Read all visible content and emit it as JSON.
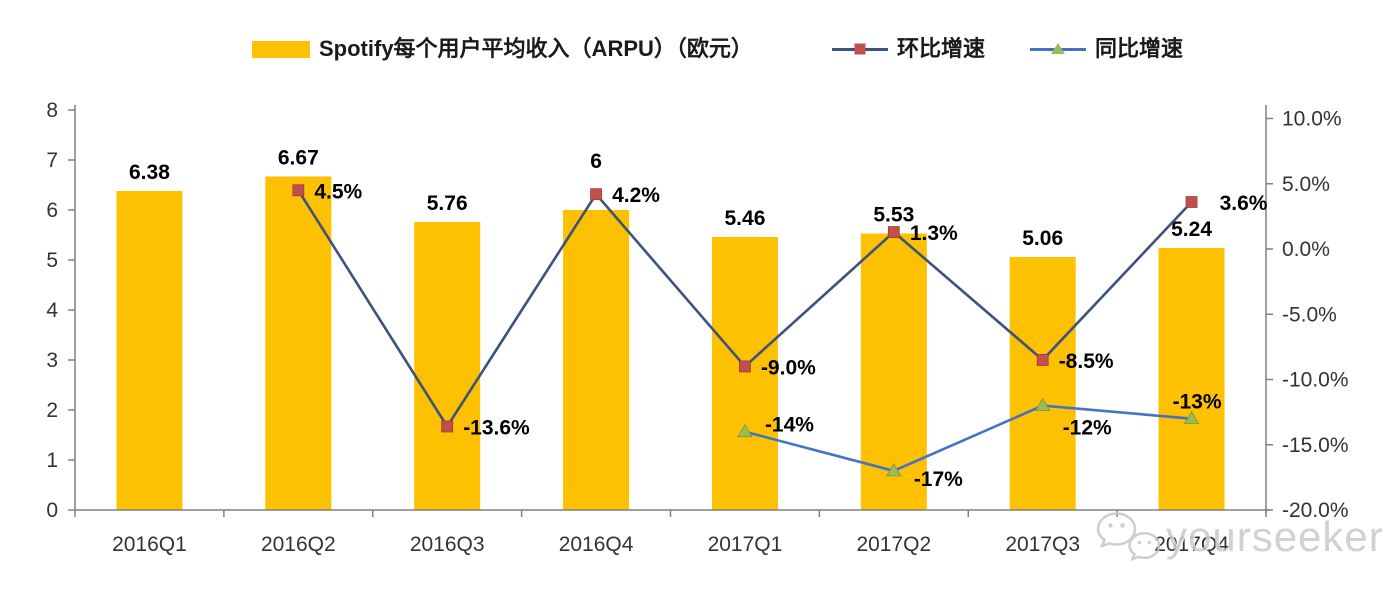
{
  "legend": {
    "arpu_label": "Spotify每个用户平均收入（ARPU）（欧元）",
    "qoq_label": "环比增速",
    "yoy_label": "同比增速"
  },
  "watermark": {
    "text": "yourseeker",
    "icon": "wechat-icon"
  },
  "colors": {
    "bar": "#FDC101",
    "qoq_line": "#3B537D",
    "qoq_marker": "#C0504D",
    "yoy_line": "#4472C4",
    "yoy_marker": "#9BBB59",
    "axis": "#808080",
    "tick_text": "#333333",
    "value_text": "#000000",
    "watermark": "#C9C9C9"
  },
  "chart_data": {
    "type": "bar+line dual-axis combo",
    "categories": [
      "2016Q1",
      "2016Q2",
      "2016Q3",
      "2016Q4",
      "2017Q1",
      "2017Q2",
      "2017Q3",
      "2017Q4"
    ],
    "series": [
      {
        "name": "Spotify每个用户平均收入（ARPU）（欧元）",
        "type": "bar",
        "axis": "left",
        "values": [
          6.38,
          6.67,
          5.76,
          6,
          5.46,
          5.53,
          5.06,
          5.24
        ],
        "labels": [
          "6.38",
          "6.67",
          "5.76",
          "6",
          "5.46",
          "5.53",
          "5.06",
          "5.24"
        ]
      },
      {
        "name": "环比增速",
        "type": "line",
        "axis": "right",
        "marker": "square",
        "values": [
          null,
          4.5,
          -13.6,
          4.2,
          -9.0,
          1.3,
          -8.5,
          3.6
        ],
        "labels": [
          null,
          "4.5%",
          "-13.6%",
          "4.2%",
          "-9.0%",
          "1.3%",
          "-8.5%",
          "3.6%"
        ]
      },
      {
        "name": "同比增速",
        "type": "line",
        "axis": "right",
        "marker": "triangle",
        "values": [
          null,
          null,
          null,
          null,
          -14,
          -17,
          -12,
          -13
        ],
        "labels": [
          null,
          null,
          null,
          null,
          "-14%",
          "-17%",
          "-12%",
          "-13%"
        ]
      }
    ],
    "left_axis": {
      "min": 0,
      "max": 8,
      "step": 1,
      "ticks": [
        "0",
        "1",
        "2",
        "3",
        "4",
        "5",
        "6",
        "7",
        "8"
      ]
    },
    "right_axis": {
      "min": -20,
      "max": 10,
      "step": 5,
      "ticks_top_down": [
        "10.0%",
        "5.0%",
        "0.0%",
        "-5.0%",
        "-10.0%",
        "-15.0%",
        "-20.0%"
      ]
    },
    "grid": false,
    "legend_position": "top"
  }
}
